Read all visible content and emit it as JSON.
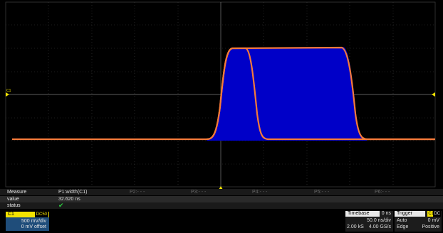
{
  "channel_marker": "C1",
  "measure": {
    "header_label": "Measure",
    "value_label": "value",
    "status_label": "status",
    "params": [
      "P1:width(C1)",
      "P2:- - -",
      "P3:- - -",
      "P4:- - -",
      "P5:- - -",
      "P6:- - -"
    ],
    "p1_value": "32.620 ns",
    "p1_status": "✔"
  },
  "channel": {
    "name": "C1",
    "coupling": "DC50",
    "vdiv": "500 mV/div",
    "offset": "0 mV offset",
    "trace_color": "#f57a3a",
    "persistence_color": "#0000c8"
  },
  "timebase": {
    "label": "Timebase",
    "delay": "0 ns",
    "tdiv": "50.0 ns/div",
    "samples": "2.00 kS",
    "rate": "4.00 GS/s"
  },
  "trigger": {
    "label": "Trigger",
    "source": "C1",
    "coupling": "DC",
    "mode": "Auto",
    "level": "0 mV",
    "type": "Edge",
    "slope": "Positive"
  }
}
